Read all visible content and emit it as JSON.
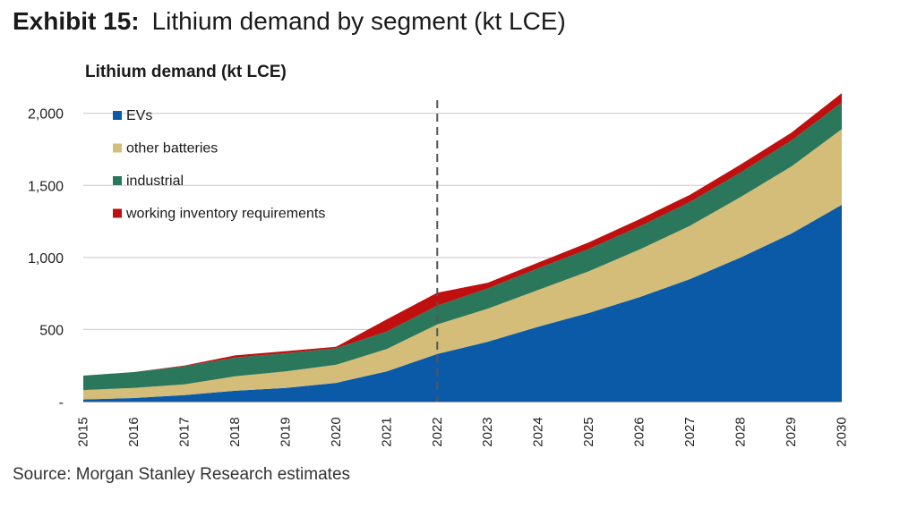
{
  "header": {
    "exhibit_label": "Exhibit 15:",
    "exhibit_title": "Lithium demand by segment (kt LCE)"
  },
  "footer": {
    "source": "Source: Morgan Stanley Research estimates"
  },
  "colors": {
    "evs": "#0a5aa8",
    "other_batteries": "#d4bd78",
    "industrial": "#2b775b",
    "working_inventory": "#c00f0f",
    "grid": "#c8c8c8",
    "dashed_line": "#555555"
  },
  "chart_data": {
    "type": "area",
    "stacked": true,
    "title": "Lithium demand (kt LCE)",
    "xlabel": "",
    "ylabel": "",
    "categories": [
      "2015",
      "2016",
      "2017",
      "2018",
      "2019",
      "2020",
      "2021",
      "2022",
      "2023",
      "2024",
      "2025",
      "2026",
      "2027",
      "2028",
      "2029",
      "2030"
    ],
    "ylim": [
      0,
      2150
    ],
    "yticks": [
      {
        "value": 0,
        "label": "-"
      },
      {
        "value": 500,
        "label": "500"
      },
      {
        "value": 1000,
        "label": "1,000"
      },
      {
        "value": 1500,
        "label": "1,500"
      },
      {
        "value": 2000,
        "label": "2,000"
      }
    ],
    "grid": true,
    "legend_position": "top-left",
    "vertical_marker": "2022",
    "series": [
      {
        "name": "EVs",
        "color_key": "evs",
        "values": [
          15,
          25,
          45,
          75,
          95,
          130,
          210,
          330,
          415,
          520,
          615,
          725,
          850,
          1000,
          1165,
          1365
        ]
      },
      {
        "name": "other batteries",
        "color_key": "other_batteries",
        "values": [
          65,
          70,
          75,
          100,
          115,
          125,
          155,
          205,
          230,
          255,
          290,
          330,
          370,
          420,
          465,
          525
        ]
      },
      {
        "name": "industrial",
        "color_key": "industrial",
        "values": [
          100,
          110,
          125,
          130,
          125,
          115,
          120,
          130,
          140,
          150,
          155,
          160,
          165,
          170,
          180,
          185
        ]
      },
      {
        "name": "working inventory requirements",
        "color_key": "working_inventory",
        "values": [
          0,
          0,
          5,
          15,
          15,
          10,
          85,
          90,
          40,
          40,
          45,
          50,
          50,
          55,
          55,
          65
        ]
      }
    ]
  }
}
